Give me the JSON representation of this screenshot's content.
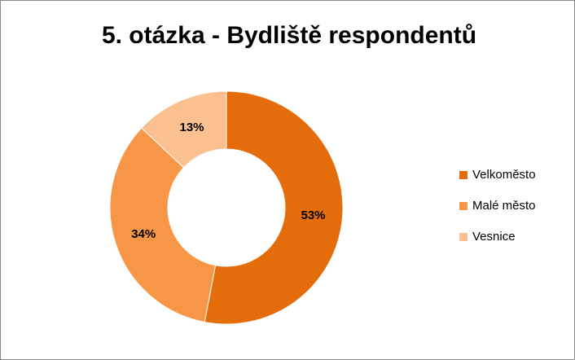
{
  "chart_data": {
    "type": "donut",
    "title": "5. otázka - Bydliště respondentů",
    "categories": [
      "Velkoměsto",
      "Malé město",
      "Vesnice"
    ],
    "values": [
      53,
      34,
      13
    ],
    "value_labels": [
      "53%",
      "34%",
      "13%"
    ],
    "colors": [
      "#E46C0A",
      "#F79646",
      "#FAC090"
    ],
    "legend": "right"
  }
}
